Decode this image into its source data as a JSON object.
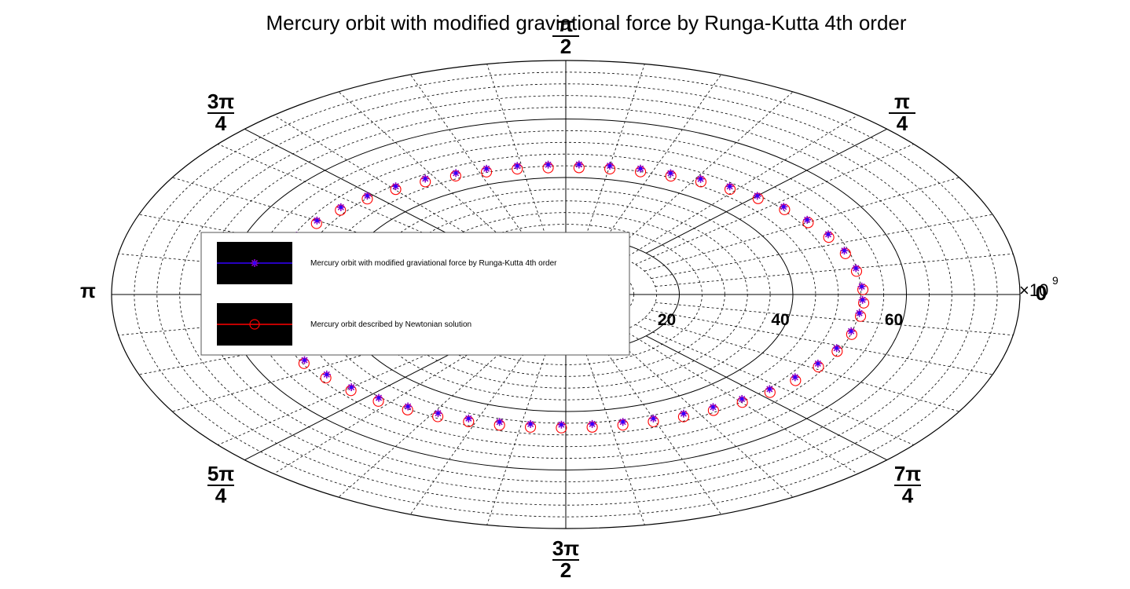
{
  "chart_data": {
    "type": "polar-scatter",
    "title": "Mercury orbit with modified gravi tational force by Runga-Kutta 4th order",
    "title_text": "Mercury orbit with modified graviational force by Runga-Kutta 4th order",
    "radial_ticks": [
      "20",
      "40",
      "60"
    ],
    "radial_tick_values": [
      20,
      40,
      60
    ],
    "radial_max": 80,
    "radial_multiplier": "×10",
    "radial_multiplier_exp": "9",
    "angle_labels": [
      {
        "num": "",
        "den": "",
        "text": "0",
        "deg": 0
      },
      {
        "num": "π",
        "den": "4",
        "deg": 45
      },
      {
        "num": "π",
        "den": "2",
        "deg": 90
      },
      {
        "num": "3π",
        "den": "4",
        "deg": 135
      },
      {
        "num": "",
        "den": "",
        "text": "π",
        "deg": 180
      },
      {
        "num": "5π",
        "den": "4",
        "deg": 225
      },
      {
        "num": "3π",
        "den": "2",
        "deg": 270
      },
      {
        "num": "7π",
        "den": "4",
        "deg": 315
      }
    ],
    "grid": true,
    "legend_position": "center-left",
    "series": [
      {
        "name": "Mercury orbit with modified graviational force by Runga-Kutta 4th order",
        "marker": "star",
        "color": "#3300ff",
        "marker_color": "#8800cc",
        "points": [
          [
            3,
            52.2
          ],
          [
            10,
            51.9
          ],
          [
            17,
            51.3
          ],
          [
            24,
            50.6
          ],
          [
            31,
            49.6
          ],
          [
            38,
            48.7
          ],
          [
            45,
            47.7
          ],
          [
            52,
            46.9
          ],
          [
            59,
            46.1
          ],
          [
            66,
            45.4
          ],
          [
            73,
            45.0
          ],
          [
            80,
            44.7
          ],
          [
            87,
            44.5
          ],
          [
            94,
            44.5
          ],
          [
            101,
            44.8
          ],
          [
            108,
            45.2
          ],
          [
            115,
            45.8
          ],
          [
            122,
            46.7
          ],
          [
            129,
            47.6
          ],
          [
            136,
            48.6
          ],
          [
            143,
            49.6
          ],
          [
            150,
            50.6
          ],
          [
            157,
            51.5
          ],
          [
            164,
            52.2
          ],
          [
            171,
            52.7
          ],
          [
            178,
            52.9
          ],
          [
            185,
            52.9
          ],
          [
            192,
            52.6
          ],
          [
            199,
            52.0
          ],
          [
            206,
            51.2
          ],
          [
            213,
            50.2
          ],
          [
            220,
            49.3
          ],
          [
            227,
            48.3
          ],
          [
            234,
            47.3
          ],
          [
            241,
            46.4
          ],
          [
            248,
            45.7
          ],
          [
            255,
            45.1
          ],
          [
            262,
            44.7
          ],
          [
            269,
            44.5
          ],
          [
            276,
            44.5
          ],
          [
            283,
            44.7
          ],
          [
            290,
            45.1
          ],
          [
            297,
            45.7
          ],
          [
            304,
            46.4
          ],
          [
            311,
            47.3
          ],
          [
            318,
            48.3
          ],
          [
            325,
            49.3
          ],
          [
            332,
            50.3
          ],
          [
            339,
            51.1
          ],
          [
            346,
            51.8
          ],
          [
            353,
            52.1
          ],
          [
            358,
            52.3
          ]
        ]
      },
      {
        "name": "Mercury orbit described by Newtonian solution",
        "marker": "circle",
        "color": "#ff0000",
        "marker_color": "#ff0000",
        "points": [
          [
            3,
            52.4
          ],
          [
            10,
            52.0
          ],
          [
            17,
            51.5
          ],
          [
            24,
            50.7
          ],
          [
            31,
            49.8
          ],
          [
            38,
            48.9
          ],
          [
            45,
            47.9
          ],
          [
            52,
            47.0
          ],
          [
            59,
            46.2
          ],
          [
            66,
            45.5
          ],
          [
            73,
            45.0
          ],
          [
            80,
            44.7
          ],
          [
            87,
            44.5
          ],
          [
            94,
            44.5
          ],
          [
            101,
            44.8
          ],
          [
            108,
            45.2
          ],
          [
            115,
            45.9
          ],
          [
            122,
            46.7
          ],
          [
            129,
            47.6
          ],
          [
            136,
            48.6
          ],
          [
            143,
            49.7
          ],
          [
            150,
            50.7
          ],
          [
            157,
            51.6
          ],
          [
            164,
            52.3
          ],
          [
            171,
            52.8
          ],
          [
            178,
            53.0
          ],
          [
            185,
            53.0
          ],
          [
            192,
            52.7
          ],
          [
            199,
            52.1
          ],
          [
            206,
            51.3
          ],
          [
            213,
            50.4
          ],
          [
            220,
            49.4
          ],
          [
            227,
            48.4
          ],
          [
            234,
            47.4
          ],
          [
            241,
            46.5
          ],
          [
            248,
            45.7
          ],
          [
            255,
            45.1
          ],
          [
            262,
            44.7
          ],
          [
            269,
            44.5
          ],
          [
            276,
            44.5
          ],
          [
            283,
            44.7
          ],
          [
            290,
            45.1
          ],
          [
            297,
            45.7
          ],
          [
            304,
            46.5
          ],
          [
            311,
            47.4
          ],
          [
            318,
            48.4
          ],
          [
            325,
            49.4
          ],
          [
            332,
            50.4
          ],
          [
            339,
            51.2
          ],
          [
            346,
            51.9
          ],
          [
            353,
            52.3
          ],
          [
            358,
            52.5
          ]
        ]
      }
    ]
  }
}
